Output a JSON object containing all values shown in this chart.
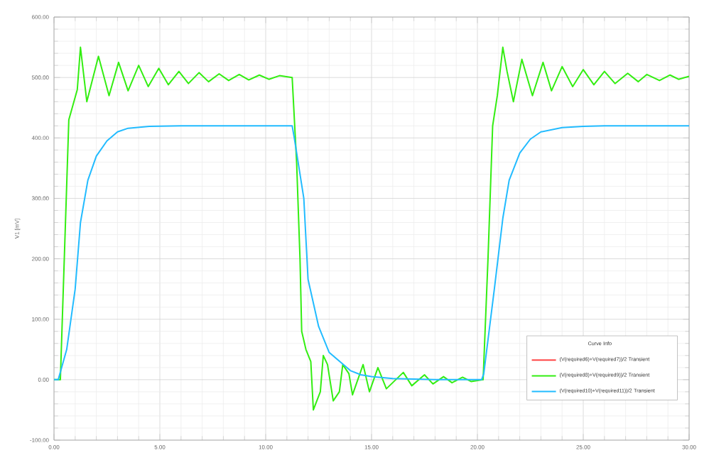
{
  "chart_data": {
    "type": "line",
    "ylabel": "V1 [mV]",
    "legend_title": "Curve Info",
    "xlim": [
      0,
      30
    ],
    "ylim": [
      -100,
      600
    ],
    "xticks": [
      {
        "value": 0,
        "label": "0.00"
      },
      {
        "value": 5,
        "label": "5.00"
      },
      {
        "value": 10,
        "label": "10.00"
      },
      {
        "value": 15,
        "label": "15.00"
      },
      {
        "value": 20,
        "label": "20.00"
      },
      {
        "value": 25,
        "label": "25.00"
      },
      {
        "value": 30,
        "label": "30.00"
      }
    ],
    "yticks": [
      {
        "value": -100,
        "label": "-100.00"
      },
      {
        "value": 0,
        "label": "0.00"
      },
      {
        "value": 100,
        "label": "100.00"
      },
      {
        "value": 200,
        "label": "200.00"
      },
      {
        "value": 300,
        "label": "300.00"
      },
      {
        "value": 400,
        "label": "400.00"
      },
      {
        "value": 500,
        "label": "500.00"
      },
      {
        "value": 600,
        "label": "600.00"
      }
    ],
    "grid": true,
    "legend": "bottom right",
    "line_style": "solid",
    "marker": "none",
    "series": [
      {
        "name": "(V(required6)+V(required7))/2 Transient",
        "color": "#ff4444"
      },
      {
        "name": "(V(required8)+V(required9))/2 Transient",
        "color": "#33ee11",
        "x": [
          0,
          0.3,
          0.7,
          1.1,
          1.25,
          1.55,
          2.1,
          2.6,
          3.05,
          3.5,
          4.0,
          4.45,
          4.95,
          5.4,
          5.9,
          6.35,
          6.85,
          7.3,
          7.8,
          8.25,
          8.75,
          9.2,
          9.7,
          10.15,
          10.65,
          11.25,
          11.46,
          11.62,
          11.7,
          11.9,
          12.13,
          12.25,
          12.58,
          12.72,
          12.92,
          13.19,
          13.48,
          13.64,
          13.93,
          14.1,
          14.6,
          14.9,
          15.3,
          15.7,
          16.5,
          16.9,
          17.5,
          17.9,
          18.4,
          18.8,
          19.3,
          19.7,
          20.27,
          20.5,
          20.72,
          20.94,
          21.2,
          21.4,
          21.7,
          22.1,
          22.6,
          23.1,
          23.5,
          24.0,
          24.5,
          25.0,
          25.5,
          26.0,
          26.5,
          27.1,
          27.6,
          28.0,
          28.6,
          29.1,
          29.5,
          30
        ],
        "values": [
          0,
          0,
          430,
          480,
          550,
          460,
          535,
          470,
          525,
          478,
          520,
          485,
          515,
          488,
          510,
          490,
          508,
          493,
          506,
          495,
          505,
          496,
          504,
          497,
          503,
          500,
          360,
          200,
          80,
          50,
          30,
          -50,
          -20,
          40,
          25,
          -35,
          -20,
          25,
          10,
          -25,
          25,
          -20,
          20,
          -15,
          12,
          -10,
          8,
          -7,
          5,
          -5,
          4,
          -3,
          0,
          200,
          420,
          470,
          550,
          510,
          460,
          530,
          470,
          525,
          478,
          518,
          485,
          513,
          488,
          510,
          490,
          507,
          493,
          505,
          495,
          504,
          497,
          502
        ]
      },
      {
        "name": "(V(required10)+V(required11))/2 Transient",
        "color": "#22bbff",
        "x": [
          0,
          0.2,
          0.6,
          1.0,
          1.25,
          1.6,
          2.0,
          2.5,
          3.0,
          3.5,
          4.5,
          6,
          11.25,
          11.35,
          11.8,
          12.0,
          12.5,
          13.0,
          13.5,
          14.0,
          14.5,
          15,
          16,
          18,
          20.2,
          20.3,
          20.8,
          21.2,
          21.5,
          22,
          22.5,
          23,
          24,
          25,
          26,
          30
        ],
        "values": [
          0,
          0,
          50,
          150,
          260,
          330,
          370,
          395,
          410,
          416,
          419,
          420,
          420,
          400,
          300,
          166,
          88,
          45,
          30,
          15,
          8,
          5,
          2,
          0,
          0,
          10,
          150,
          267,
          330,
          375,
          398,
          410,
          417,
          419,
          420,
          420
        ]
      }
    ]
  }
}
